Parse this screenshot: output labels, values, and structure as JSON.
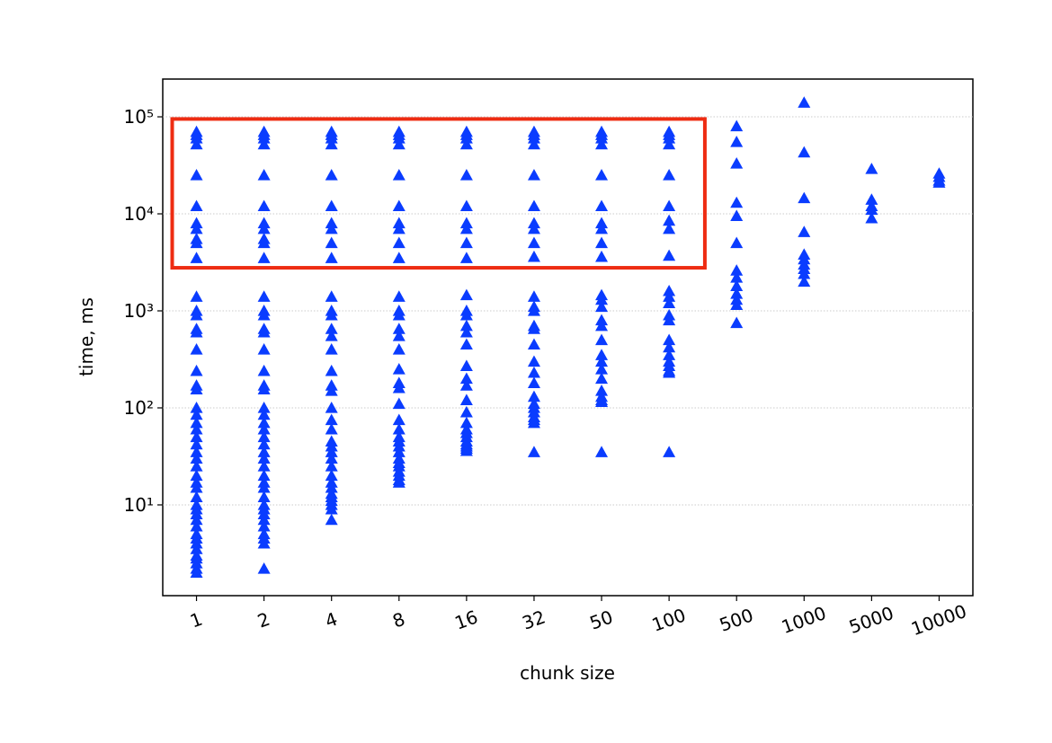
{
  "chart_data": {
    "type": "scatter",
    "x_label": "chunk size",
    "y_label": "time, ms",
    "categories": [
      "1",
      "2",
      "4",
      "8",
      "16",
      "32",
      "50",
      "100",
      "500",
      "1000",
      "5000",
      "10000"
    ],
    "color": "#0a3cff",
    "log_y": true,
    "grid": true,
    "ylim": [
      1.16,
      245000
    ],
    "yticks": [
      {
        "value": 10,
        "label": "10¹"
      },
      {
        "value": 100,
        "label": "10²"
      },
      {
        "value": 1000,
        "label": "10³"
      },
      {
        "value": 10000,
        "label": "10⁴"
      },
      {
        "value": 100000,
        "label": "10⁵"
      }
    ],
    "highlight_box": {
      "xlim": [
        -0.36,
        7.53
      ],
      "ylim": [
        2780,
        95000
      ],
      "color": "#ee2c12"
    },
    "values": [
      [
        70000,
        65000,
        60000,
        52000,
        25000,
        12000,
        8000,
        7000,
        5500,
        5000,
        3500,
        1400,
        1000,
        900,
        650,
        600,
        400,
        240,
        170,
        155,
        100,
        85,
        70,
        60,
        50,
        42,
        35,
        30,
        25,
        20,
        17,
        15,
        12,
        10,
        9,
        8,
        7,
        6,
        5,
        4.5,
        4,
        3.5,
        3,
        2.8,
        2.5,
        2.2,
        2
      ],
      [
        70000,
        65000,
        60000,
        52000,
        25000,
        12000,
        8000,
        7000,
        5500,
        5000,
        3500,
        1400,
        1000,
        900,
        650,
        600,
        400,
        240,
        170,
        155,
        100,
        85,
        70,
        60,
        50,
        42,
        35,
        30,
        25,
        20,
        17,
        15,
        12,
        10,
        9,
        8,
        7,
        6,
        5,
        4.5,
        4,
        2.2
      ],
      [
        70000,
        65000,
        60000,
        52000,
        25000,
        12000,
        8000,
        7000,
        5000,
        3500,
        1400,
        1000,
        900,
        650,
        550,
        400,
        240,
        170,
        150,
        100,
        75,
        60,
        45,
        40,
        35,
        30,
        25,
        20,
        17,
        15,
        13,
        12,
        11,
        10,
        9,
        7
      ],
      [
        70000,
        65000,
        60000,
        52000,
        25000,
        12000,
        8000,
        7000,
        5000,
        3500,
        1400,
        1000,
        900,
        650,
        550,
        400,
        250,
        180,
        160,
        110,
        75,
        60,
        50,
        45,
        40,
        35,
        30,
        27,
        25,
        22,
        20,
        18,
        17
      ],
      [
        70000,
        65000,
        60000,
        52000,
        25000,
        12000,
        8000,
        7000,
        5000,
        3500,
        1450,
        1000,
        900,
        700,
        600,
        450,
        270,
        200,
        170,
        120,
        90,
        70,
        60,
        55,
        50,
        45,
        42,
        40,
        38,
        36
      ],
      [
        70000,
        65000,
        60000,
        52000,
        25000,
        12000,
        8000,
        7000,
        5000,
        3600,
        1400,
        1100,
        1000,
        700,
        650,
        450,
        300,
        230,
        180,
        130,
        110,
        100,
        90,
        80,
        75,
        70,
        35
      ],
      [
        70000,
        65000,
        60000,
        52000,
        25000,
        12000,
        8000,
        7000,
        5000,
        3600,
        1450,
        1300,
        1100,
        800,
        700,
        500,
        350,
        300,
        250,
        200,
        150,
        130,
        120,
        115,
        35
      ],
      [
        70000,
        65000,
        60000,
        52000,
        25000,
        12000,
        8500,
        7000,
        3700,
        1600,
        1400,
        1200,
        900,
        800,
        500,
        420,
        350,
        300,
        270,
        240,
        230,
        35
      ],
      [
        80000,
        55000,
        33000,
        13000,
        9500,
        5000,
        2600,
        2200,
        1800,
        1500,
        1300,
        1150,
        750
      ],
      [
        140000,
        43000,
        14500,
        6500,
        3800,
        3400,
        3000,
        2700,
        2400,
        2000
      ],
      [
        29000,
        14000,
        12000,
        11000,
        9000
      ],
      [
        26000,
        24000,
        22000,
        21000
      ]
    ]
  }
}
